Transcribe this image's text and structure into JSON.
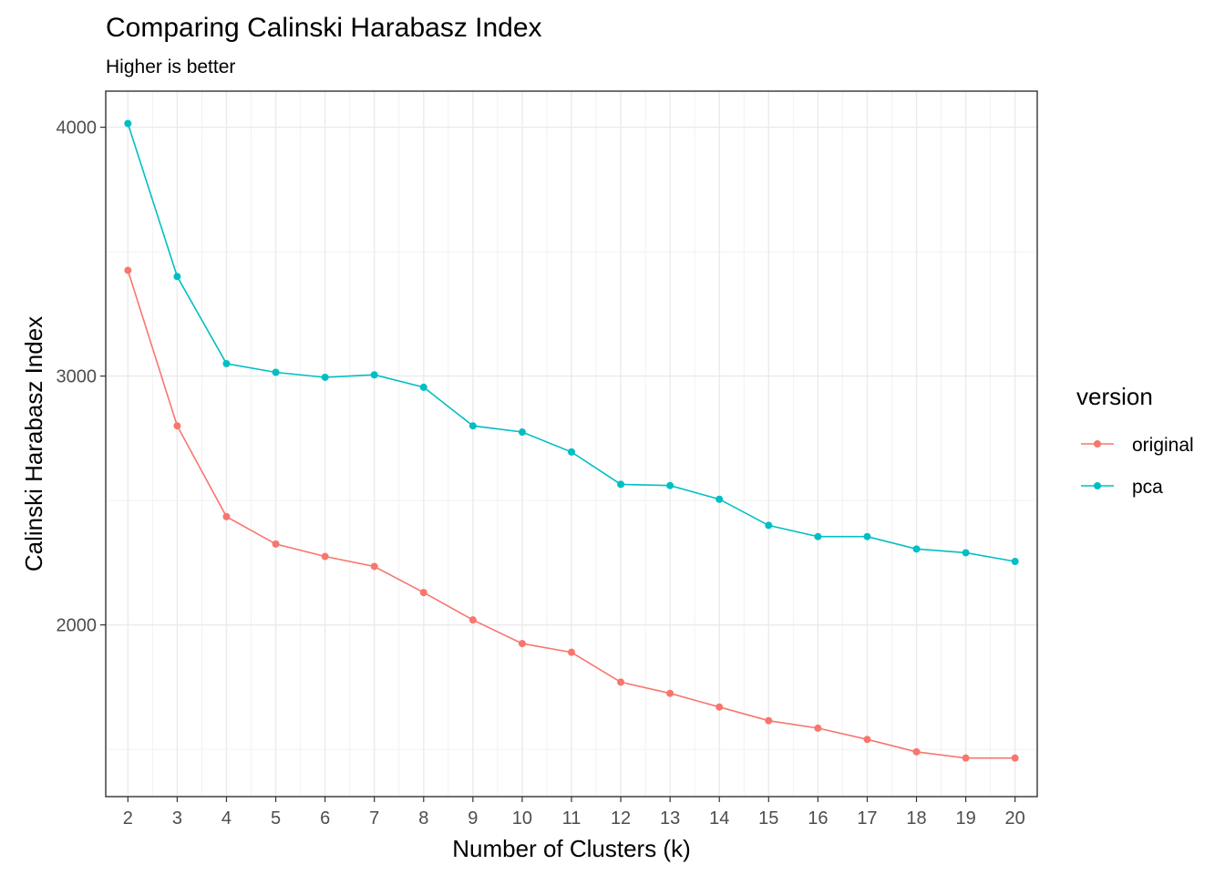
{
  "chart_data": {
    "type": "line",
    "title": "Comparing Calinski Harabasz Index",
    "subtitle": "Higher is better",
    "xlabel": "Number of Clusters (k)",
    "ylabel": "Calinski Harabasz Index",
    "x": [
      2,
      3,
      4,
      5,
      6,
      7,
      8,
      9,
      10,
      11,
      12,
      13,
      14,
      15,
      16,
      17,
      18,
      19,
      20
    ],
    "xlim": [
      1.55,
      20.45
    ],
    "ylim": [
      1310,
      4145
    ],
    "y_ticks": [
      2000,
      3000,
      4000
    ],
    "y_tick_labels": [
      "2000",
      "3000",
      "4000"
    ],
    "x_tick_labels": [
      "2",
      "3",
      "4",
      "5",
      "6",
      "7",
      "8",
      "9",
      "10",
      "11",
      "12",
      "13",
      "14",
      "15",
      "16",
      "17",
      "18",
      "19",
      "20"
    ],
    "grid": true,
    "legend": {
      "title": "version",
      "placement": "right"
    },
    "series": [
      {
        "name": "original",
        "color": "#F8766D",
        "values": [
          3425,
          2800,
          2435,
          2325,
          2275,
          2235,
          2130,
          2020,
          1925,
          1890,
          1770,
          1725,
          1670,
          1615,
          1585,
          1540,
          1490,
          1465,
          1465
        ]
      },
      {
        "name": "pca",
        "color": "#00BFC4",
        "values": [
          4015,
          3400,
          3050,
          3015,
          2995,
          3005,
          2955,
          2800,
          2775,
          2695,
          2565,
          2560,
          2505,
          2400,
          2355,
          2355,
          2305,
          2290,
          2255
        ]
      }
    ]
  }
}
